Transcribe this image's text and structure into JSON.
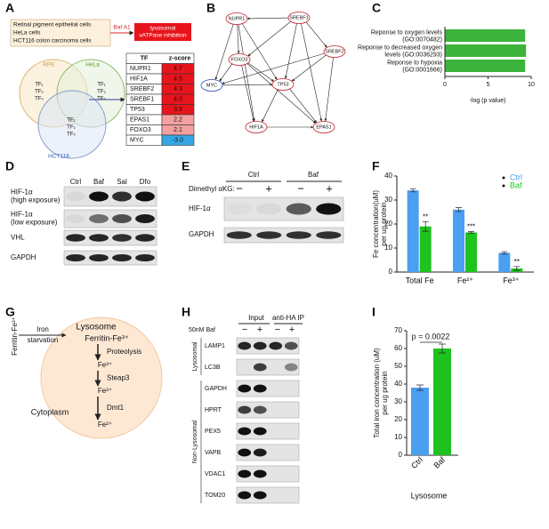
{
  "panels": {
    "A": {
      "label": "A",
      "cells": [
        "Retinal pigment epithelial cells",
        "HeLa cells",
        "HCT116 colon carcinoma cells"
      ],
      "treatment": "Baf A1",
      "effect": [
        "lysosomal",
        "vATPase inhibition"
      ],
      "venn": [
        {
          "name": "RPE",
          "items": [
            "TF₁",
            "TF₂",
            "TFₙ"
          ]
        },
        {
          "name": "HeLa",
          "items": [
            "TF₁",
            "TF₂",
            "TFₙ"
          ]
        },
        {
          "name": "HCT116",
          "items": [
            "TF₁",
            "TF₂",
            "TFₙ"
          ]
        }
      ],
      "table": {
        "header": [
          "TF",
          "z-score"
        ],
        "rows": [
          [
            "NUPR1",
            "4.7"
          ],
          [
            "HIF1A",
            "4.5"
          ],
          [
            "SREBF2",
            "4.3"
          ],
          [
            "SREBF1",
            "4.0"
          ],
          [
            "TP53",
            "3.9"
          ],
          [
            "EPAS1",
            "2.2"
          ],
          [
            "FOXO3",
            "2.1"
          ],
          [
            "MYC",
            "-3.0"
          ]
        ]
      }
    },
    "B": {
      "label": "B",
      "nodes": [
        "NUPR1",
        "SREBF1",
        "FOXO3",
        "SREBF2",
        "MYC",
        "TP53",
        "HIF1A",
        "EPAS1"
      ]
    },
    "C": {
      "label": "C",
      "type": "bar",
      "categories": [
        [
          "Reponse to oxygen levels",
          "(GO:0070482)"
        ],
        [
          "Reponse to decreased oxygen",
          "levels (GO:0036293)"
        ],
        [
          "Reponse to hypoxia",
          "(GO:0001666)"
        ]
      ],
      "values": [
        9.3,
        9.4,
        9.3
      ],
      "color": "#3cb43c",
      "xlim": [
        0,
        10
      ],
      "xticks": [
        0,
        5,
        10
      ],
      "xlabel": "-log (p value)"
    },
    "D": {
      "label": "D",
      "columns": [
        "Ctrl",
        "Baf",
        "Sal",
        "Dfo"
      ],
      "rows": [
        [
          "HIF-1α",
          "(high exposure)"
        ],
        [
          "HIF-1α",
          "(low exposure)"
        ],
        [
          "VHL"
        ],
        [
          "GAPDH"
        ]
      ]
    },
    "E": {
      "label": "E",
      "groups": [
        "Ctrl",
        "Baf"
      ],
      "treatment": "Dimethyl αKG:",
      "signs": [
        "−",
        "+",
        "−",
        "+"
      ],
      "rows": [
        "HIF-1α",
        "GAPDH"
      ]
    },
    "F": {
      "label": "F",
      "type": "bar",
      "categories": [
        "Total Fe",
        "Fe²⁺",
        "Fe³⁺"
      ],
      "series": [
        {
          "name": "Ctrl",
          "color": "#4a9ff0",
          "values": [
            34,
            26,
            8
          ],
          "errors": [
            0.6,
            0.8,
            0.5
          ]
        },
        {
          "name": "Baf",
          "color": "#1fc21f",
          "values": [
            19,
            16.5,
            1.5
          ],
          "errors": [
            2,
            0.3,
            0.8
          ]
        }
      ],
      "ylim": [
        0,
        40
      ],
      "yticks": [
        0,
        10,
        20,
        30,
        40
      ],
      "ylabel": [
        "Fe concentration(uM)",
        "per ug protein"
      ],
      "annotations": [
        "**",
        "***",
        "**"
      ]
    },
    "G": {
      "label": "G",
      "source": "Ferritin-Fe³⁺",
      "trigger": [
        "Iron",
        "starvation"
      ],
      "compartment": "Lysosome",
      "steps": [
        "Ferritin-Fe³⁺",
        "Fe³⁺",
        "Fe²⁺",
        "Fe²⁺"
      ],
      "processes": [
        "Proteolysis",
        "Steap3",
        "Dmt1"
      ],
      "outside": "Cytoplasm"
    },
    "H": {
      "label": "H",
      "groups": [
        "Input",
        "anti-HA IP"
      ],
      "treatment": "50nM Baf",
      "signs": [
        "−",
        "+",
        "−",
        "+"
      ],
      "sections": [
        {
          "name": "Lysosomal",
          "rows": [
            "LAMP1",
            "LC3B"
          ]
        },
        {
          "name": "Non-Lysosomal",
          "rows": [
            "GAPDH",
            "HPRT",
            "PEX5",
            "VAPB",
            "VDAC1",
            "TOM20"
          ]
        }
      ]
    },
    "I": {
      "label": "I",
      "type": "bar",
      "categories": [
        "Ctrl",
        "Baf"
      ],
      "values": [
        38,
        60
      ],
      "errors": [
        1.5,
        2.5
      ],
      "colors": [
        "#4a9ff0",
        "#1fc21f"
      ],
      "ylim": [
        0,
        70
      ],
      "yticks": [
        0,
        10,
        20,
        30,
        40,
        50,
        60,
        70
      ],
      "ylabel": [
        "Total iron concentration (uM)",
        "per ug protein"
      ],
      "xlabel": "Lysosome",
      "annotation": "p = 0.0022"
    }
  }
}
